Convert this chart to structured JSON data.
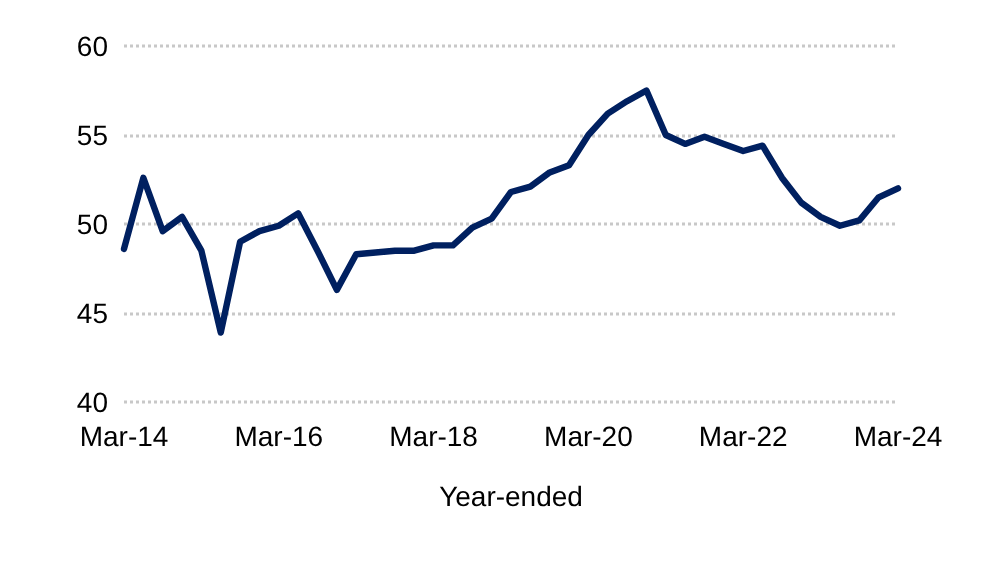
{
  "chart_data": {
    "type": "line",
    "xlabel": "Year-ended",
    "categories": [
      "Mar-14",
      null,
      null,
      null,
      null,
      null,
      null,
      null,
      "Mar-16",
      null,
      null,
      null,
      null,
      null,
      null,
      null,
      "Mar-18",
      null,
      null,
      null,
      null,
      null,
      null,
      null,
      "Mar-20",
      null,
      null,
      null,
      null,
      null,
      null,
      null,
      "Mar-22",
      null,
      null,
      null,
      null,
      null,
      null,
      null,
      "Mar-24"
    ],
    "series": [
      {
        "color": "#002060",
        "values": [
          48.6,
          52.6,
          49.6,
          50.4,
          48.5,
          43.9,
          49.0,
          49.6,
          49.9,
          50.6,
          48.5,
          46.3,
          48.3,
          48.4,
          48.5,
          48.5,
          48.8,
          48.8,
          49.8,
          50.3,
          51.8,
          52.1,
          52.9,
          53.3,
          55.0,
          56.2,
          56.9,
          57.5,
          55.0,
          54.5,
          54.9,
          54.5,
          54.1,
          54.4,
          52.6,
          51.2,
          50.4,
          49.9,
          50.2,
          51.5,
          52.0
        ]
      }
    ],
    "ylim": [
      40,
      60
    ],
    "yticks": [
      40,
      45,
      50,
      55,
      60
    ],
    "grid": "y",
    "marker": "none",
    "line_style": "solid"
  }
}
